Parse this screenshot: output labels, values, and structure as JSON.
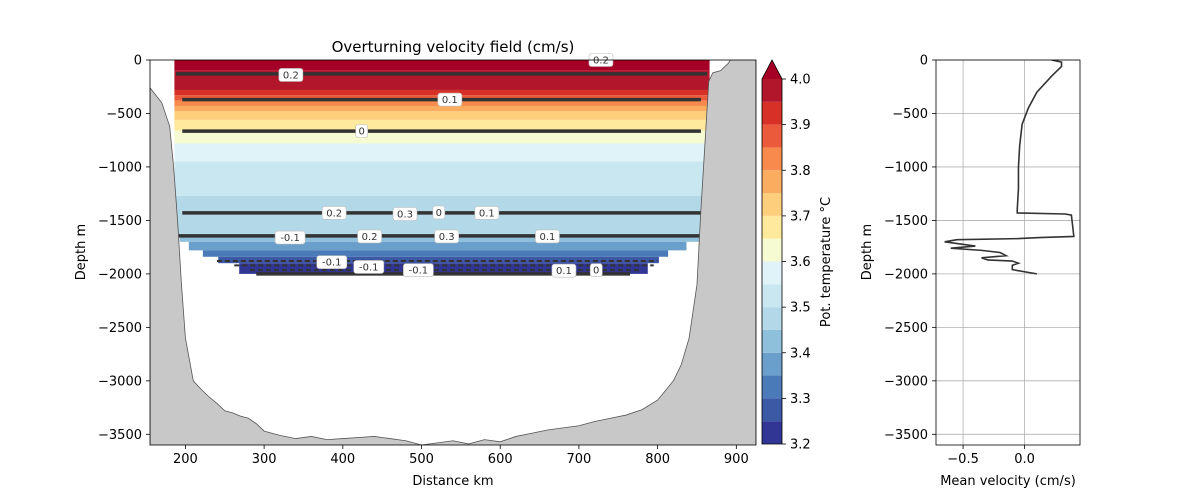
{
  "chart_data": [
    {
      "type": "contourf",
      "title": "Overturning velocity field (cm/s)",
      "xlabel": "Distance km",
      "ylabel": "Depth m",
      "xlim": [
        155,
        925
      ],
      "ylim": [
        -3600,
        0
      ],
      "xticks": [
        200,
        300,
        400,
        500,
        600,
        700,
        800,
        900
      ],
      "yticks": [
        0,
        -500,
        -1000,
        -1500,
        -2000,
        -2500,
        -3000,
        -3500
      ],
      "colorbar": {
        "label": "Pot. temperature °C",
        "range": [
          3.2,
          4.0
        ],
        "ticks": [
          3.2,
          3.3,
          3.4,
          3.5,
          3.6,
          3.7,
          3.8,
          3.9,
          4.0
        ],
        "levels": [
          3.2,
          3.25,
          3.3,
          3.35,
          3.4,
          3.45,
          3.5,
          3.55,
          3.6,
          3.65,
          3.7,
          3.75,
          3.8,
          3.85,
          3.9,
          3.95,
          4.0
        ],
        "colors": [
          "#313695",
          "#3c59a6",
          "#4a7ab7",
          "#6a9ecb",
          "#8ebfdb",
          "#b3d9e9",
          "#c9e7f0",
          "#e0f3f8",
          "#f6fbd1",
          "#fee99d",
          "#fdce7c",
          "#fcac5f",
          "#f98a4e",
          "#eb5b3b",
          "#d73027",
          "#b1162b"
        ],
        "extend": "max",
        "over_color": "#a50026"
      },
      "temperature_bands": [
        {
          "top": 0,
          "bottom": -100,
          "value": 4.02
        },
        {
          "top": -100,
          "bottom": -280,
          "value": 3.97
        },
        {
          "top": -280,
          "bottom": -330,
          "value": 3.92
        },
        {
          "top": -330,
          "bottom": -380,
          "value": 3.88
        },
        {
          "top": -380,
          "bottom": -430,
          "value": 3.83
        },
        {
          "top": -430,
          "bottom": -480,
          "value": 3.78
        },
        {
          "top": -480,
          "bottom": -560,
          "value": 3.73
        },
        {
          "top": -560,
          "bottom": -660,
          "value": 3.68
        },
        {
          "top": -660,
          "bottom": -780,
          "value": 3.63
        },
        {
          "top": -780,
          "bottom": -950,
          "value": 3.58
        },
        {
          "top": -950,
          "bottom": -1270,
          "value": 3.53
        },
        {
          "top": -1270,
          "bottom": -1640,
          "value": 3.48
        },
        {
          "top": -1640,
          "bottom": -1700,
          "value": 3.43
        },
        {
          "top": -1700,
          "bottom": -1780,
          "value": 3.38
        },
        {
          "top": -1780,
          "bottom": -1840,
          "value": 3.33
        },
        {
          "top": -1840,
          "bottom": -1900,
          "value": 3.28
        },
        {
          "top": -1900,
          "bottom": -2000,
          "value": 3.22
        }
      ],
      "section_extent": [
        {
          "depth": 0,
          "xmin": 186,
          "xmax": 866
        },
        {
          "depth": -1600,
          "xmin": 186,
          "xmax": 866
        },
        {
          "depth": -1650,
          "xmin": 190,
          "xmax": 862
        },
        {
          "depth": -1700,
          "xmin": 197,
          "xmax": 850
        },
        {
          "depth": -1760,
          "xmin": 208,
          "xmax": 830
        },
        {
          "depth": -1820,
          "xmin": 225,
          "xmax": 810
        },
        {
          "depth": -1880,
          "xmin": 245,
          "xmax": 800
        },
        {
          "depth": -1940,
          "xmin": 265,
          "xmax": 792
        },
        {
          "depth": -2000,
          "xmin": 285,
          "xmax": 765
        }
      ],
      "contour_lines": [
        {
          "depth": -130,
          "x": [
            188,
            863
          ],
          "style": "solid"
        },
        {
          "depth": -370,
          "x": [
            196,
            855
          ],
          "style": "solid"
        },
        {
          "depth": -665,
          "x": [
            196,
            855
          ],
          "style": "solid",
          "label": "0"
        },
        {
          "depth": -1430,
          "x": [
            196,
            855
          ],
          "style": "solid"
        },
        {
          "depth": -1645,
          "x": [
            190,
            860
          ],
          "style": "solid"
        },
        {
          "depth": -1880,
          "x": [
            240,
            800
          ],
          "style": "dashed"
        },
        {
          "depth": -1920,
          "x": [
            262,
            795
          ],
          "style": "dashed"
        },
        {
          "depth": -1965,
          "x": [
            282,
            780
          ],
          "style": "dashed"
        },
        {
          "depth": -2000,
          "x": [
            290,
            765
          ],
          "style": "solid"
        }
      ],
      "contour_labels": [
        {
          "text": "0.2",
          "x": 728,
          "depth": 0
        },
        {
          "text": "0.2",
          "x": 334,
          "depth": -140
        },
        {
          "text": "0.1",
          "x": 536,
          "depth": -370
        },
        {
          "text": "0",
          "x": 424,
          "depth": -665
        },
        {
          "text": "0.2",
          "x": 389,
          "depth": -1430
        },
        {
          "text": "0.3",
          "x": 479,
          "depth": -1440
        },
        {
          "text": "0",
          "x": 522,
          "depth": -1425
        },
        {
          "text": "0.1",
          "x": 583,
          "depth": -1430
        },
        {
          "text": "-0.1",
          "x": 333,
          "depth": -1660
        },
        {
          "text": "0.2",
          "x": 434,
          "depth": -1650
        },
        {
          "text": "0.3",
          "x": 532,
          "depth": -1650
        },
        {
          "text": "0.1",
          "x": 660,
          "depth": -1650
        },
        {
          "text": "-0.1",
          "x": 386,
          "depth": -1890
        },
        {
          "text": "-0.1",
          "x": 433,
          "depth": -1935
        },
        {
          "text": "-0.1",
          "x": 496,
          "depth": -1965
        },
        {
          "text": "0.1",
          "x": 681,
          "depth": -1970
        },
        {
          "text": "0",
          "x": 722,
          "depth": -1965
        }
      ],
      "bathymetry": {
        "x": [
          155,
          170,
          180,
          185,
          190,
          195,
          200,
          210,
          220,
          230,
          240,
          250,
          260,
          270,
          280,
          290,
          300,
          320,
          340,
          360,
          380,
          400,
          420,
          440,
          460,
          480,
          500,
          520,
          540,
          560,
          580,
          600,
          620,
          640,
          660,
          680,
          700,
          720,
          740,
          760,
          780,
          800,
          820,
          830,
          840,
          850,
          855,
          860,
          865,
          870,
          880,
          890,
          900,
          910,
          915,
          920,
          925
        ],
        "depth": [
          -260,
          -400,
          -620,
          -1000,
          -1500,
          -2100,
          -2600,
          -3000,
          -3080,
          -3150,
          -3210,
          -3280,
          -3300,
          -3330,
          -3350,
          -3400,
          -3470,
          -3510,
          -3540,
          -3520,
          -3550,
          -3540,
          -3530,
          -3520,
          -3540,
          -3560,
          -3600,
          -3580,
          -3560,
          -3590,
          -3550,
          -3570,
          -3520,
          -3490,
          -3460,
          -3440,
          -3420,
          -3380,
          -3350,
          -3320,
          -3270,
          -3180,
          -3000,
          -2850,
          -2600,
          -2100,
          -1400,
          -800,
          -200,
          -120,
          -100,
          -30,
          100,
          100,
          100,
          100,
          100
        ]
      }
    },
    {
      "type": "line",
      "xlabel": "Mean velocity (cm/s)",
      "ylabel": "Depth m",
      "xlim": [
        -0.72,
        0.45
      ],
      "ylim": [
        -3600,
        0
      ],
      "xticks": [
        -0.5,
        0.0
      ],
      "xtick_labels": [
        "−0.5",
        "0.0"
      ],
      "yticks": [
        0,
        -500,
        -1000,
        -1500,
        -2000,
        -2500,
        -3000,
        -3500
      ],
      "grid": true,
      "series": [
        {
          "x": [
            0.22,
            0.3,
            0.3,
            0.22,
            0.1,
            0.03,
            -0.02,
            -0.04,
            -0.05,
            -0.05,
            -0.06,
            -0.06,
            -0.06,
            0.33,
            0.38,
            0.4,
            0.12,
            -0.05,
            -0.55,
            -0.65,
            -0.4,
            -0.6,
            -0.35,
            -0.2,
            -0.15,
            -0.35,
            -0.3,
            -0.1,
            -0.05,
            -0.1,
            -0.1,
            0.1
          ],
          "y": [
            0,
            -20,
            -60,
            -150,
            -300,
            -450,
            -600,
            -800,
            -1000,
            -1200,
            -1400,
            -1420,
            -1430,
            -1440,
            -1450,
            -1650,
            -1660,
            -1670,
            -1680,
            -1700,
            -1740,
            -1760,
            -1780,
            -1800,
            -1830,
            -1850,
            -1870,
            -1880,
            -1900,
            -1920,
            -1960,
            -2000
          ]
        }
      ]
    }
  ],
  "tick_labels": {
    "x_main": [
      "200",
      "300",
      "400",
      "500",
      "600",
      "700",
      "800",
      "900"
    ],
    "y": [
      "0",
      "−500",
      "−1000",
      "−1500",
      "−2000",
      "−2500",
      "−3000",
      "−3500"
    ],
    "colorbar": [
      "3.2",
      "3.3",
      "3.4",
      "3.5",
      "3.6",
      "3.7",
      "3.8",
      "3.9",
      "4.0"
    ]
  }
}
